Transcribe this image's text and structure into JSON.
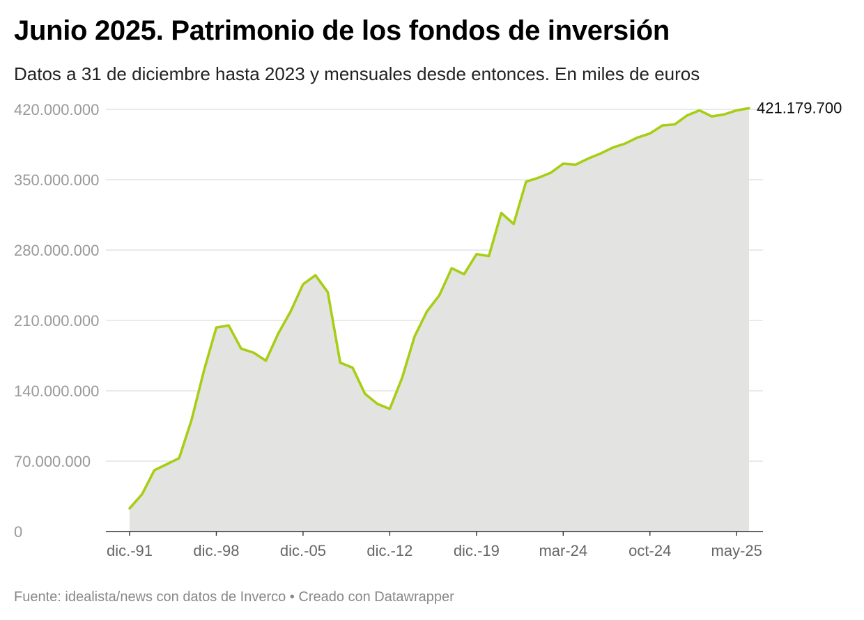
{
  "header": {
    "title": "Junio 2025. Patrimonio de los fondos de inversión",
    "subtitle": "Datos a 31 de diciembre hasta 2023 y mensuales desde entonces. En miles de euros"
  },
  "footer": {
    "source": "Fuente: idealista/news con datos de Inverco • Creado con Datawrapper"
  },
  "colors": {
    "line": "#a6ce15",
    "area": "#e3e3e2",
    "grid": "#dddddd",
    "axis": "#333333"
  },
  "chart_data": {
    "type": "area",
    "title": "Junio 2025. Patrimonio de los fondos de inversión",
    "xlabel": "",
    "ylabel": "",
    "ylim": [
      0,
      420000000
    ],
    "y_ticks": [
      0,
      70000000,
      140000000,
      210000000,
      280000000,
      350000000,
      420000000
    ],
    "y_tick_labels": [
      "0",
      "70.000.000",
      "140.000.000",
      "210.000.000",
      "280.000.000",
      "350.000.000",
      "420.000.000"
    ],
    "x_ticks": [
      {
        "index": 0,
        "label": "dic.-91"
      },
      {
        "index": 7,
        "label": "dic.-98"
      },
      {
        "index": 14,
        "label": "dic.-05"
      },
      {
        "index": 21,
        "label": "dic.-12"
      },
      {
        "index": 28,
        "label": "dic.-19"
      },
      {
        "index": 35,
        "label": "mar-24"
      },
      {
        "index": 42,
        "label": "oct-24"
      },
      {
        "index": 49,
        "label": "may-25"
      }
    ],
    "last_value_label": "421.179.700",
    "grid": true,
    "series": [
      {
        "name": "Patrimonio",
        "values": [
          23000000,
          37000000,
          61000000,
          67000000,
          73000000,
          111000000,
          160000000,
          203000000,
          205000000,
          182000000,
          178000000,
          170000000,
          197000000,
          219000000,
          246000000,
          255000000,
          238000000,
          168000000,
          163000000,
          137000000,
          127000000,
          122000000,
          153000000,
          194000000,
          219000000,
          235000000,
          262000000,
          256000000,
          276000000,
          274000000,
          317000000,
          306000000,
          348000000,
          352000000,
          357000000,
          366000000,
          365000000,
          371000000,
          376000000,
          382000000,
          386000000,
          392000000,
          396000000,
          404000000,
          405000000,
          414000000,
          419000000,
          413000000,
          415000000,
          419000000,
          421179700
        ]
      }
    ]
  }
}
